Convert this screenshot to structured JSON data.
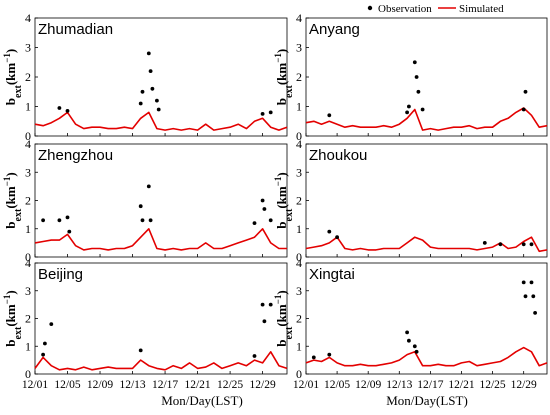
{
  "chart_data": {
    "type": "line",
    "legend": {
      "position": "top-right",
      "observation_label": "Observation",
      "simulated_label": "Simulated",
      "observation_color": "#000000",
      "simulated_color": "#e30000"
    },
    "xlabel": "Mon/Day(LST)",
    "ylabel_main": "b",
    "ylabel_sub": "ext",
    "ylabel_unit": "(km",
    "ylabel_exp": "−1",
    "ylabel_close": ")",
    "x_ticks": [
      "12/01",
      "12/05",
      "12/09",
      "12/13",
      "12/17",
      "12/21",
      "12/25",
      "12/29"
    ],
    "y_ticks": [
      "0",
      "1",
      "2",
      "3",
      "4"
    ],
    "xlim": [
      "12/01",
      "01/01"
    ],
    "ylim": [
      0,
      4
    ],
    "panels": [
      {
        "city": "Zhumadian",
        "simulated": [
          [
            "12/01",
            0.4
          ],
          [
            "12/02",
            0.35
          ],
          [
            "12/03",
            0.45
          ],
          [
            "12/04",
            0.6
          ],
          [
            "12/05",
            0.8
          ],
          [
            "12/06",
            0.4
          ],
          [
            "12/07",
            0.25
          ],
          [
            "12/08",
            0.3
          ],
          [
            "12/09",
            0.3
          ],
          [
            "12/10",
            0.25
          ],
          [
            "12/11",
            0.25
          ],
          [
            "12/12",
            0.3
          ],
          [
            "12/13",
            0.25
          ],
          [
            "12/14",
            0.6
          ],
          [
            "12/15",
            0.8
          ],
          [
            "12/16",
            0.25
          ],
          [
            "12/17",
            0.2
          ],
          [
            "12/18",
            0.25
          ],
          [
            "12/19",
            0.2
          ],
          [
            "12/20",
            0.25
          ],
          [
            "12/21",
            0.2
          ],
          [
            "12/22",
            0.4
          ],
          [
            "12/23",
            0.2
          ],
          [
            "12/24",
            0.25
          ],
          [
            "12/25",
            0.3
          ],
          [
            "12/26",
            0.4
          ],
          [
            "12/27",
            0.25
          ],
          [
            "12/28",
            0.5
          ],
          [
            "12/29",
            0.6
          ],
          [
            "12/30",
            0.3
          ],
          [
            "12/31",
            0.2
          ],
          [
            "01/01",
            0.3
          ]
        ],
        "observation": [
          [
            "12/04",
            0.95
          ],
          [
            "12/05",
            0.85
          ],
          [
            "12/14",
            1.1
          ],
          [
            "12/14",
            1.5
          ],
          [
            "12/15",
            2.8
          ],
          [
            "12/15",
            2.2
          ],
          [
            "12/15",
            1.6
          ],
          [
            "12/16",
            1.2
          ],
          [
            "12/16",
            0.9
          ],
          [
            "12/29",
            0.75
          ],
          [
            "12/30",
            0.8
          ]
        ]
      },
      {
        "city": "Anyang",
        "simulated": [
          [
            "12/01",
            0.45
          ],
          [
            "12/02",
            0.5
          ],
          [
            "12/03",
            0.4
          ],
          [
            "12/04",
            0.5
          ],
          [
            "12/05",
            0.4
          ],
          [
            "12/06",
            0.3
          ],
          [
            "12/07",
            0.35
          ],
          [
            "12/08",
            0.3
          ],
          [
            "12/09",
            0.3
          ],
          [
            "12/10",
            0.3
          ],
          [
            "12/11",
            0.35
          ],
          [
            "12/12",
            0.3
          ],
          [
            "12/13",
            0.4
          ],
          [
            "12/14",
            0.6
          ],
          [
            "12/15",
            0.9
          ],
          [
            "12/16",
            0.2
          ],
          [
            "12/17",
            0.25
          ],
          [
            "12/18",
            0.2
          ],
          [
            "12/19",
            0.25
          ],
          [
            "12/20",
            0.3
          ],
          [
            "12/21",
            0.3
          ],
          [
            "12/22",
            0.35
          ],
          [
            "12/23",
            0.25
          ],
          [
            "12/24",
            0.3
          ],
          [
            "12/25",
            0.3
          ],
          [
            "12/26",
            0.5
          ],
          [
            "12/27",
            0.6
          ],
          [
            "12/28",
            0.8
          ],
          [
            "12/29",
            0.95
          ],
          [
            "12/30",
            0.7
          ],
          [
            "12/31",
            0.3
          ],
          [
            "01/01",
            0.35
          ]
        ],
        "observation": [
          [
            "12/04",
            0.7
          ],
          [
            "12/14",
            0.8
          ],
          [
            "12/14",
            1.0
          ],
          [
            "12/15",
            2.5
          ],
          [
            "12/15",
            2.0
          ],
          [
            "12/15",
            1.5
          ],
          [
            "12/16",
            0.9
          ],
          [
            "12/29",
            0.9
          ],
          [
            "12/29",
            1.5
          ]
        ]
      },
      {
        "city": "Zhengzhou",
        "simulated": [
          [
            "12/01",
            0.5
          ],
          [
            "12/02",
            0.55
          ],
          [
            "12/03",
            0.6
          ],
          [
            "12/04",
            0.6
          ],
          [
            "12/05",
            0.8
          ],
          [
            "12/06",
            0.4
          ],
          [
            "12/07",
            0.25
          ],
          [
            "12/08",
            0.3
          ],
          [
            "12/09",
            0.3
          ],
          [
            "12/10",
            0.25
          ],
          [
            "12/11",
            0.3
          ],
          [
            "12/12",
            0.3
          ],
          [
            "12/13",
            0.4
          ],
          [
            "12/14",
            0.7
          ],
          [
            "12/15",
            1.0
          ],
          [
            "12/16",
            0.3
          ],
          [
            "12/17",
            0.25
          ],
          [
            "12/18",
            0.3
          ],
          [
            "12/19",
            0.25
          ],
          [
            "12/20",
            0.3
          ],
          [
            "12/21",
            0.3
          ],
          [
            "12/22",
            0.5
          ],
          [
            "12/23",
            0.3
          ],
          [
            "12/24",
            0.3
          ],
          [
            "12/25",
            0.4
          ],
          [
            "12/26",
            0.5
          ],
          [
            "12/27",
            0.6
          ],
          [
            "12/28",
            0.7
          ],
          [
            "12/29",
            1.0
          ],
          [
            "12/30",
            0.5
          ],
          [
            "12/31",
            0.3
          ],
          [
            "01/01",
            0.3
          ]
        ],
        "observation": [
          [
            "12/02",
            1.3
          ],
          [
            "12/04",
            1.3
          ],
          [
            "12/05",
            1.4
          ],
          [
            "12/05",
            0.9
          ],
          [
            "12/14",
            1.8
          ],
          [
            "12/14",
            1.3
          ],
          [
            "12/15",
            2.5
          ],
          [
            "12/15",
            1.3
          ],
          [
            "12/28",
            1.2
          ],
          [
            "12/29",
            2.0
          ],
          [
            "12/29",
            1.7
          ],
          [
            "12/30",
            1.3
          ]
        ]
      },
      {
        "city": "Zhoukou",
        "simulated": [
          [
            "12/01",
            0.3
          ],
          [
            "12/02",
            0.35
          ],
          [
            "12/03",
            0.4
          ],
          [
            "12/04",
            0.5
          ],
          [
            "12/05",
            0.7
          ],
          [
            "12/06",
            0.3
          ],
          [
            "12/07",
            0.25
          ],
          [
            "12/08",
            0.3
          ],
          [
            "12/09",
            0.25
          ],
          [
            "12/10",
            0.25
          ],
          [
            "12/11",
            0.3
          ],
          [
            "12/12",
            0.3
          ],
          [
            "12/13",
            0.3
          ],
          [
            "12/14",
            0.5
          ],
          [
            "12/15",
            0.7
          ],
          [
            "12/16",
            0.6
          ],
          [
            "12/17",
            0.35
          ],
          [
            "12/18",
            0.3
          ],
          [
            "12/19",
            0.3
          ],
          [
            "12/20",
            0.3
          ],
          [
            "12/21",
            0.3
          ],
          [
            "12/22",
            0.3
          ],
          [
            "12/23",
            0.25
          ],
          [
            "12/24",
            0.3
          ],
          [
            "12/25",
            0.35
          ],
          [
            "12/26",
            0.5
          ],
          [
            "12/27",
            0.3
          ],
          [
            "12/28",
            0.35
          ],
          [
            "12/29",
            0.55
          ],
          [
            "12/30",
            0.7
          ],
          [
            "12/31",
            0.2
          ],
          [
            "01/01",
            0.25
          ]
        ],
        "observation": [
          [
            "12/04",
            0.9
          ],
          [
            "12/05",
            0.7
          ],
          [
            "12/24",
            0.5
          ],
          [
            "12/26",
            0.45
          ],
          [
            "12/29",
            0.45
          ],
          [
            "12/30",
            0.45
          ]
        ]
      },
      {
        "city": "Beijing",
        "simulated": [
          [
            "12/01",
            0.2
          ],
          [
            "12/02",
            0.6
          ],
          [
            "12/03",
            0.3
          ],
          [
            "12/04",
            0.15
          ],
          [
            "12/05",
            0.2
          ],
          [
            "12/06",
            0.15
          ],
          [
            "12/07",
            0.25
          ],
          [
            "12/08",
            0.15
          ],
          [
            "12/09",
            0.2
          ],
          [
            "12/10",
            0.25
          ],
          [
            "12/11",
            0.2
          ],
          [
            "12/12",
            0.2
          ],
          [
            "12/13",
            0.2
          ],
          [
            "12/14",
            0.5
          ],
          [
            "12/15",
            0.3
          ],
          [
            "12/16",
            0.2
          ],
          [
            "12/17",
            0.15
          ],
          [
            "12/18",
            0.3
          ],
          [
            "12/19",
            0.2
          ],
          [
            "12/20",
            0.4
          ],
          [
            "12/21",
            0.2
          ],
          [
            "12/22",
            0.25
          ],
          [
            "12/23",
            0.4
          ],
          [
            "12/24",
            0.2
          ],
          [
            "12/25",
            0.3
          ],
          [
            "12/26",
            0.4
          ],
          [
            "12/27",
            0.3
          ],
          [
            "12/28",
            0.5
          ],
          [
            "12/29",
            0.4
          ],
          [
            "12/30",
            0.8
          ],
          [
            "12/31",
            0.3
          ],
          [
            "01/01",
            0.2
          ]
        ],
        "observation": [
          [
            "12/02",
            0.7
          ],
          [
            "12/02",
            1.1
          ],
          [
            "12/03",
            1.8
          ],
          [
            "12/14",
            0.85
          ],
          [
            "12/28",
            0.65
          ],
          [
            "12/29",
            2.5
          ],
          [
            "12/29",
            1.9
          ],
          [
            "12/30",
            2.5
          ]
        ]
      },
      {
        "city": "Xingtai",
        "simulated": [
          [
            "12/01",
            0.4
          ],
          [
            "12/02",
            0.5
          ],
          [
            "12/03",
            0.45
          ],
          [
            "12/04",
            0.6
          ],
          [
            "12/05",
            0.4
          ],
          [
            "12/06",
            0.3
          ],
          [
            "12/07",
            0.3
          ],
          [
            "12/08",
            0.35
          ],
          [
            "12/09",
            0.3
          ],
          [
            "12/10",
            0.3
          ],
          [
            "12/11",
            0.35
          ],
          [
            "12/12",
            0.4
          ],
          [
            "12/13",
            0.5
          ],
          [
            "12/14",
            0.7
          ],
          [
            "12/15",
            0.8
          ],
          [
            "12/16",
            0.3
          ],
          [
            "12/17",
            0.3
          ],
          [
            "12/18",
            0.35
          ],
          [
            "12/19",
            0.3
          ],
          [
            "12/20",
            0.3
          ],
          [
            "12/21",
            0.4
          ],
          [
            "12/22",
            0.45
          ],
          [
            "12/23",
            0.3
          ],
          [
            "12/24",
            0.35
          ],
          [
            "12/25",
            0.4
          ],
          [
            "12/26",
            0.45
          ],
          [
            "12/27",
            0.6
          ],
          [
            "12/28",
            0.8
          ],
          [
            "12/29",
            0.95
          ],
          [
            "12/30",
            0.8
          ],
          [
            "12/31",
            0.3
          ],
          [
            "01/01",
            0.4
          ]
        ],
        "observation": [
          [
            "12/02",
            0.6
          ],
          [
            "12/04",
            0.7
          ],
          [
            "12/14",
            1.5
          ],
          [
            "12/14",
            1.2
          ],
          [
            "12/15",
            1.0
          ],
          [
            "12/15",
            0.8
          ],
          [
            "12/29",
            3.3
          ],
          [
            "12/29",
            2.8
          ],
          [
            "12/30",
            3.3
          ],
          [
            "12/30",
            2.8
          ],
          [
            "12/30",
            2.2
          ]
        ]
      }
    ]
  }
}
